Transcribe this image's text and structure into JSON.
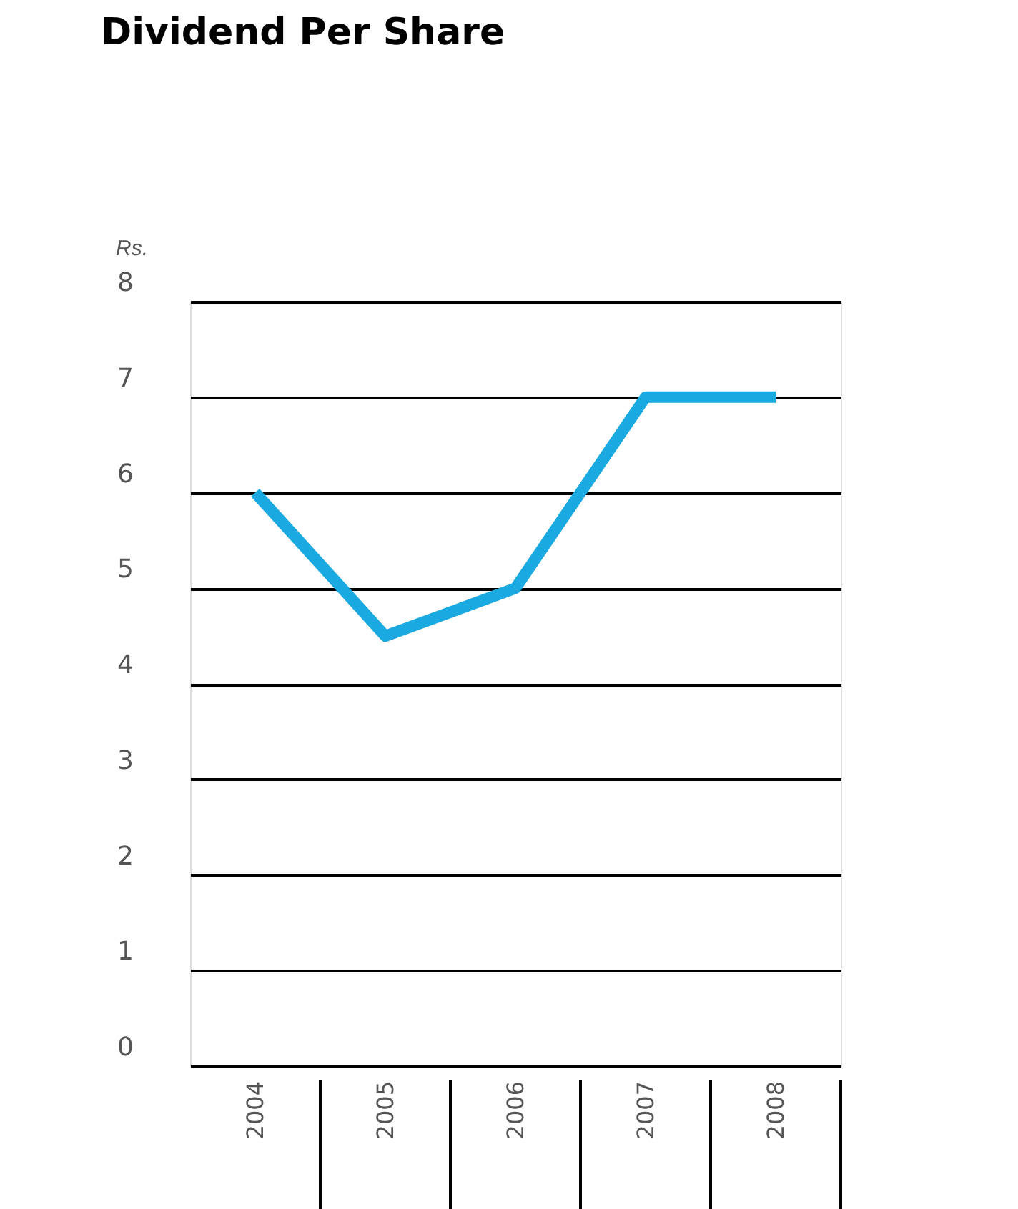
{
  "chart_data": {
    "type": "line",
    "title": "Dividend Per Share",
    "ylabel": "Rs.",
    "categories": [
      "2004",
      "2005",
      "2006",
      "2007",
      "2008"
    ],
    "series": [
      {
        "color": "#1ba9e1",
        "values": [
          6,
          4.5,
          5,
          7,
          7
        ]
      }
    ],
    "ylim": [
      0,
      8
    ],
    "yticks": [
      0,
      1,
      2,
      3,
      4,
      5,
      6,
      7,
      8
    ],
    "grid": "y",
    "legend": false,
    "marker": "none",
    "line_style": "solid"
  }
}
